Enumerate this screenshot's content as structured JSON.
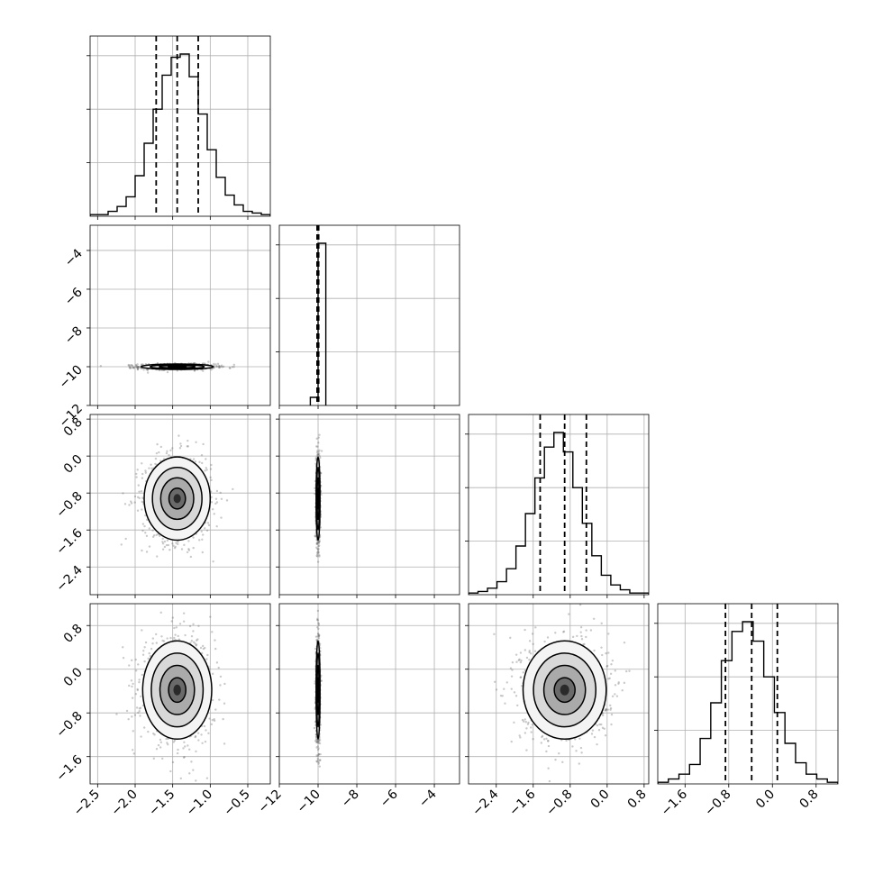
{
  "chart_data": {
    "type": "corner",
    "n_params": 4,
    "parameters": [
      {
        "range": [
          -2.6,
          -0.2
        ],
        "ticks": [
          -2.5,
          -2.0,
          -1.5,
          -1.0,
          -0.5
        ],
        "quantiles": [
          -1.72,
          -1.44,
          -1.16
        ],
        "hist_edges": [
          -2.6,
          -0.2
        ],
        "hist": [
          0.01,
          0.01,
          0.03,
          0.06,
          0.12,
          0.25,
          0.45,
          0.66,
          0.87,
          0.98,
          1.0,
          0.86,
          0.63,
          0.41,
          0.24,
          0.13,
          0.07,
          0.03,
          0.02,
          0.01
        ]
      },
      {
        "range": [
          -12,
          -2.7
        ],
        "ticks": [
          -12,
          -10,
          -8,
          -6,
          -4
        ],
        "quantiles": [
          -10.05,
          -10.0,
          -9.97
        ],
        "hist_edges": [
          -10.4,
          -9.6
        ],
        "hist": [
          0.05,
          1.0
        ]
      },
      {
        "range": [
          -3.0,
          0.9
        ],
        "ticks": [
          -2.4,
          -1.6,
          -0.8,
          0.0,
          0.8
        ],
        "quantiles": [
          -1.45,
          -0.92,
          -0.45
        ],
        "hist_edges": [
          -3.0,
          0.9
        ],
        "hist": [
          0.01,
          0.02,
          0.04,
          0.08,
          0.16,
          0.3,
          0.5,
          0.72,
          0.91,
          1.0,
          0.88,
          0.66,
          0.44,
          0.24,
          0.12,
          0.06,
          0.03,
          0.01,
          0.01
        ]
      },
      {
        "range": [
          -2.1,
          1.2
        ],
        "ticks": [
          -1.6,
          -0.8,
          0.0,
          0.8
        ],
        "quantiles": [
          -0.86,
          -0.38,
          0.09
        ],
        "hist_edges": [
          -2.1,
          1.2
        ],
        "hist": [
          0.01,
          0.03,
          0.06,
          0.12,
          0.28,
          0.5,
          0.76,
          0.94,
          1.0,
          0.88,
          0.66,
          0.44,
          0.25,
          0.13,
          0.06,
          0.03,
          0.01
        ]
      }
    ],
    "pairs": [
      {
        "row": 1,
        "col": 0,
        "mean": [
          -1.44,
          -10.0
        ],
        "sd": [
          0.24,
          0.07
        ]
      },
      {
        "row": 2,
        "col": 0,
        "mean": [
          -1.44,
          -0.92
        ],
        "sd": [
          0.22,
          0.45
        ]
      },
      {
        "row": 2,
        "col": 1,
        "mean": [
          -10.0,
          -0.92
        ],
        "sd": [
          0.05,
          0.45
        ]
      },
      {
        "row": 3,
        "col": 0,
        "mean": [
          -1.44,
          -0.38
        ],
        "sd": [
          0.23,
          0.45
        ]
      },
      {
        "row": 3,
        "col": 1,
        "mean": [
          -10.0,
          -0.38
        ],
        "sd": [
          0.05,
          0.45
        ]
      },
      {
        "row": 3,
        "col": 2,
        "mean": [
          -0.92,
          -0.38
        ],
        "sd": [
          0.45,
          0.45
        ]
      }
    ],
    "contour_levels_sigma": [
      0.5,
      1.0,
      1.5,
      2.0
    ],
    "grid": true,
    "line_style_quantiles": "dashed"
  }
}
